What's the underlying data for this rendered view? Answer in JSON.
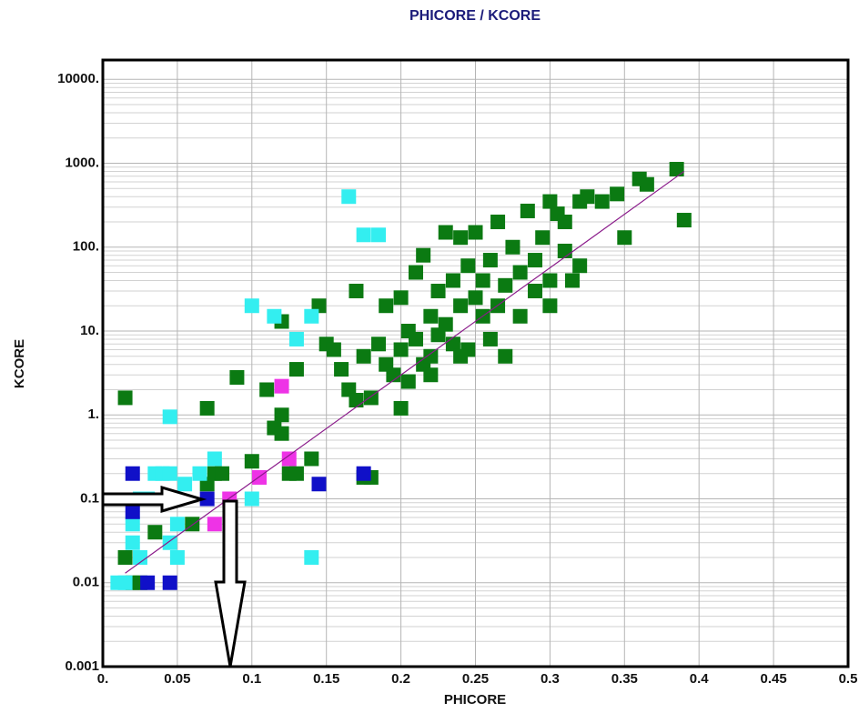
{
  "chart_data": {
    "type": "scatter",
    "title": "PHICORE / KCORE",
    "x_label": "PHICORE",
    "y_label": "KCORE",
    "xlim": [
      0,
      0.5
    ],
    "ylim": [
      0.001,
      17000
    ],
    "y_scale": "log",
    "grid": true,
    "xticks": [
      {
        "value": 0,
        "label": "0."
      },
      0.05,
      0.1,
      0.15,
      0.2,
      0.25,
      0.3,
      0.35,
      0.4,
      0.45,
      0.5
    ],
    "yticks": [
      0.001,
      0.01,
      0.1,
      {
        "value": 1,
        "label": "1."
      },
      {
        "value": 10,
        "label": "10."
      },
      {
        "value": 100,
        "label": "100."
      },
      {
        "value": 1000,
        "label": "1000."
      },
      {
        "value": 10000,
        "label": "10000."
      }
    ],
    "series": [
      {
        "color": "#0b7a12",
        "x": [
          0.015,
          0.015,
          0.02,
          0.025,
          0.035,
          0.07,
          0.075,
          0.07,
          0.09,
          0.11,
          0.115,
          0.12,
          0.125,
          0.12,
          0.13,
          0.14,
          0.145,
          0.15,
          0.155,
          0.16,
          0.165,
          0.17,
          0.175,
          0.17,
          0.18,
          0.18,
          0.185,
          0.19,
          0.19,
          0.195,
          0.2,
          0.2,
          0.2,
          0.205,
          0.21,
          0.21,
          0.215,
          0.215,
          0.22,
          0.22,
          0.225,
          0.225,
          0.23,
          0.23,
          0.235,
          0.235,
          0.24,
          0.24,
          0.245,
          0.245,
          0.25,
          0.25,
          0.255,
          0.255,
          0.26,
          0.26,
          0.265,
          0.265,
          0.27,
          0.27,
          0.275,
          0.28,
          0.28,
          0.285,
          0.29,
          0.29,
          0.295,
          0.3,
          0.3,
          0.305,
          0.31,
          0.315,
          0.32,
          0.325,
          0.335,
          0.345,
          0.35,
          0.36,
          0.365,
          0.385,
          0.39,
          0.3,
          0.31,
          0.32,
          0.22,
          0.205,
          0.24,
          0.13,
          0.175,
          0.1,
          0.08,
          0.06,
          0.12
        ],
        "y": [
          1.6,
          0.02,
          0.01,
          0.01,
          0.04,
          1.2,
          0.2,
          0.15,
          2.8,
          2,
          0.7,
          0.6,
          0.2,
          13,
          3.5,
          0.3,
          20,
          7,
          6,
          3.5,
          2,
          1.5,
          5,
          30,
          0.18,
          1.6,
          7,
          4,
          20,
          3,
          1.2,
          6,
          25,
          10,
          50,
          8,
          4,
          80,
          15,
          5,
          30,
          9,
          150,
          12,
          7,
          40,
          20,
          130,
          6,
          60,
          25,
          150,
          15,
          40,
          8,
          70,
          20,
          200,
          35,
          5,
          100,
          50,
          15,
          270,
          70,
          30,
          130,
          40,
          350,
          250,
          90,
          40,
          350,
          400,
          350,
          430,
          130,
          650,
          560,
          850,
          210,
          20,
          200,
          60,
          3,
          2.5,
          5,
          0.2,
          0.18,
          0.28,
          0.2,
          0.05,
          1
        ]
      },
      {
        "color": "#33eef0",
        "x": [
          0.01,
          0.015,
          0.02,
          0.02,
          0.025,
          0.03,
          0.035,
          0.04,
          0.045,
          0.05,
          0.05,
          0.045,
          0.055,
          0.065,
          0.075,
          0.1,
          0.1,
          0.115,
          0.13,
          0.14,
          0.165,
          0.175,
          0.185,
          0.045,
          0.14,
          0.025
        ],
        "y": [
          0.01,
          0.01,
          0.05,
          0.03,
          0.02,
          0.1,
          0.2,
          0.2,
          0.2,
          0.02,
          0.05,
          0.03,
          0.15,
          0.2,
          0.3,
          0.1,
          20,
          15,
          8,
          15,
          400,
          140,
          140,
          0.95,
          0.02,
          0.1
        ]
      },
      {
        "color": "#1010c8",
        "x": [
          0.02,
          0.02,
          0.03,
          0.045,
          0.07,
          0.145,
          0.175
        ],
        "y": [
          0.2,
          0.07,
          0.01,
          0.01,
          0.1,
          0.15,
          0.2
        ]
      },
      {
        "color": "#ee33e6",
        "x": [
          0.085,
          0.105,
          0.125,
          0.075,
          0.12
        ],
        "y": [
          0.1,
          0.18,
          0.3,
          0.05,
          2.2
        ]
      }
    ],
    "trendline": {
      "color": "#8a1a8a",
      "x": [
        0.015,
        0.39
      ],
      "y": [
        0.013,
        800
      ]
    }
  }
}
